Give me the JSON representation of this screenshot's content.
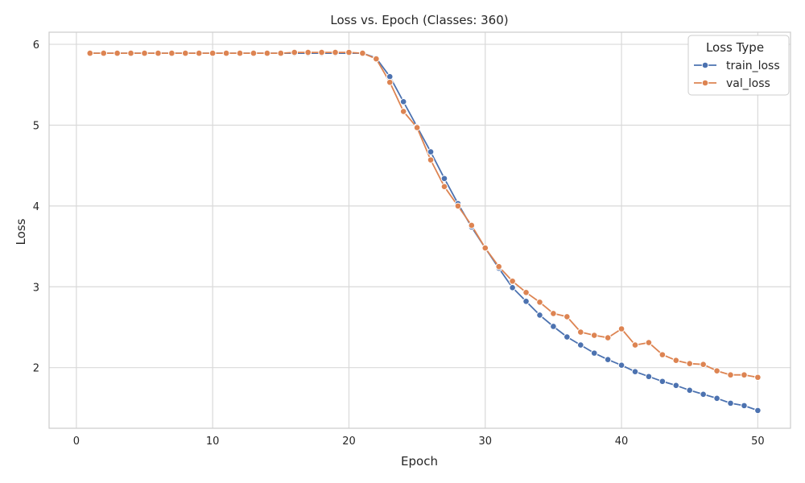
{
  "chart_data": {
    "type": "line",
    "title": "Loss vs. Epoch (Classes: 360)",
    "xlabel": "Epoch",
    "ylabel": "Loss",
    "xlim": [
      -2.0,
      52.4
    ],
    "ylim": [
      1.25,
      6.15
    ],
    "xticks": [
      0,
      10,
      20,
      30,
      40,
      50
    ],
    "yticks": [
      2,
      3,
      4,
      5,
      6
    ],
    "grid": true,
    "legend": {
      "title": "Loss Type",
      "position": "top-right"
    },
    "x": [
      1,
      2,
      3,
      4,
      5,
      6,
      7,
      8,
      9,
      10,
      11,
      12,
      13,
      14,
      15,
      16,
      17,
      18,
      19,
      20,
      21,
      22,
      23,
      24,
      25,
      26,
      27,
      28,
      29,
      30,
      31,
      32,
      33,
      34,
      35,
      36,
      37,
      38,
      39,
      40,
      41,
      42,
      43,
      44,
      45,
      46,
      47,
      48,
      49,
      50
    ],
    "series": [
      {
        "name": "train_loss",
        "color": "#4c72b0",
        "values": [
          5.89,
          5.89,
          5.89,
          5.89,
          5.89,
          5.89,
          5.89,
          5.89,
          5.89,
          5.89,
          5.89,
          5.89,
          5.89,
          5.89,
          5.89,
          5.89,
          5.89,
          5.89,
          5.89,
          5.89,
          5.89,
          5.83,
          5.6,
          5.29,
          4.98,
          4.67,
          4.34,
          4.03,
          3.74,
          3.48,
          3.23,
          2.99,
          2.82,
          2.65,
          2.51,
          2.38,
          2.28,
          2.18,
          2.1,
          2.03,
          1.95,
          1.89,
          1.83,
          1.78,
          1.72,
          1.67,
          1.62,
          1.56,
          1.53,
          1.47
        ]
      },
      {
        "name": "val_loss",
        "color": "#dd8452",
        "values": [
          5.89,
          5.89,
          5.89,
          5.89,
          5.89,
          5.89,
          5.89,
          5.89,
          5.89,
          5.89,
          5.89,
          5.89,
          5.89,
          5.89,
          5.89,
          5.9,
          5.9,
          5.9,
          5.9,
          5.9,
          5.89,
          5.82,
          5.53,
          5.17,
          4.97,
          4.57,
          4.24,
          4.0,
          3.76,
          3.48,
          3.25,
          3.07,
          2.93,
          2.81,
          2.67,
          2.63,
          2.44,
          2.4,
          2.37,
          2.48,
          2.28,
          2.31,
          2.16,
          2.09,
          2.05,
          2.04,
          1.96,
          1.91,
          1.91,
          1.88
        ]
      }
    ]
  }
}
